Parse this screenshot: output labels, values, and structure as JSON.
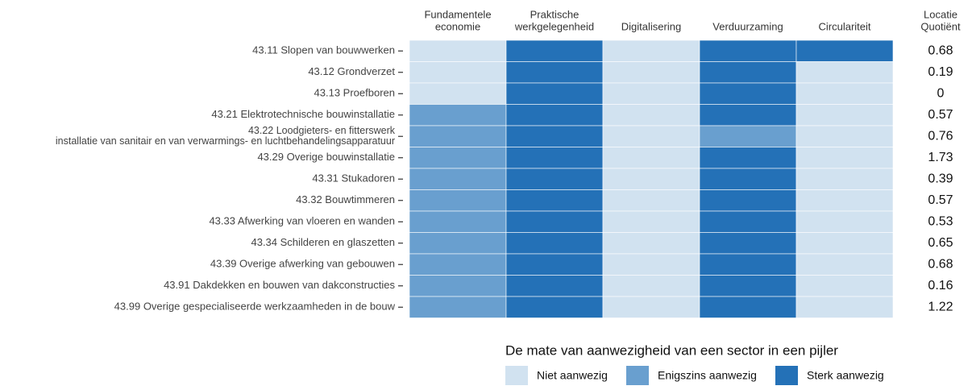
{
  "chart_data": {
    "type": "heatmap",
    "columns": [
      [
        "Fundamentele",
        "economie"
      ],
      [
        "Praktische",
        "werkgelegenheid"
      ],
      [
        "Digitalisering"
      ],
      [
        "Verduurzaming"
      ],
      [
        "Circulariteit"
      ]
    ],
    "rows": [
      "43.11 Slopen van bouwwerken",
      "43.12 Grondverzet",
      "43.13 Proefboren",
      "43.21 Elektrotechnische bouwinstallatie",
      [
        "43.22 Loodgieters- en fitterswerk",
        "installatie van sanitair en van verwarmings- en luchtbehandelingsapparatuur"
      ],
      "43.29 Overige bouwinstallatie",
      "43.31 Stukadoren",
      "43.32 Bouwtimmeren",
      "43.33 Afwerking van vloeren en wanden",
      "43.34 Schilderen en glaszetten",
      "43.39 Overige afwerking van gebouwen",
      "43.91 Dakdekken en bouwen van dakconstructies",
      "43.99 Overige gespecialiseerde werkzaamheden in de bouw"
    ],
    "z": [
      [
        0,
        2,
        0,
        2,
        2
      ],
      [
        0,
        2,
        0,
        2,
        0
      ],
      [
        0,
        2,
        0,
        2,
        0
      ],
      [
        1,
        2,
        0,
        2,
        0
      ],
      [
        1,
        2,
        0,
        1,
        0
      ],
      [
        1,
        2,
        0,
        2,
        0
      ],
      [
        1,
        2,
        0,
        2,
        0
      ],
      [
        1,
        2,
        0,
        2,
        0
      ],
      [
        1,
        2,
        0,
        2,
        0
      ],
      [
        1,
        2,
        0,
        2,
        0
      ],
      [
        1,
        2,
        0,
        2,
        0
      ],
      [
        1,
        2,
        0,
        2,
        0
      ],
      [
        1,
        2,
        0,
        2,
        0
      ]
    ],
    "lq_title": [
      "Locatie",
      "Quotiënt"
    ],
    "lq": [
      0.68,
      0.19,
      0,
      0.57,
      0.76,
      1.73,
      0.39,
      0.57,
      0.53,
      0.65,
      0.68,
      0.16,
      1.22
    ],
    "legend": {
      "title": "De mate van aanwezigheid van een sector in een pijler",
      "levels": [
        {
          "label": "Niet aanwezig",
          "color": "#d1e2f0"
        },
        {
          "label": "Enigszins aanwezig",
          "color": "#699fcf"
        },
        {
          "label": "Sterk aanwezig",
          "color": "#2471b7"
        }
      ]
    }
  }
}
